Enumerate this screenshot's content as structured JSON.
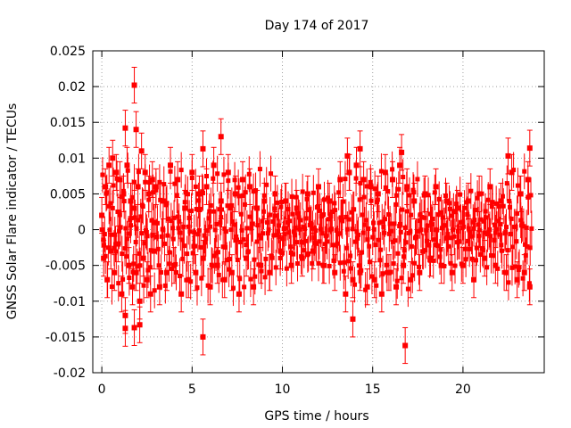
{
  "chart_data": {
    "type": "scatter",
    "title": "Day 174 of 2017",
    "xlabel": "GPS time / hours",
    "ylabel": "GNSS Solar Flare indicator / TECUs",
    "xlim": [
      -0.5,
      24.5
    ],
    "ylim": [
      -0.02,
      0.025
    ],
    "x_ticks": [
      0,
      5,
      10,
      15,
      20
    ],
    "x_tick_labels": [
      "0",
      "5",
      "10",
      "15",
      "20"
    ],
    "y_ticks": [
      -0.02,
      -0.015,
      -0.01,
      -0.005,
      0,
      0.005,
      0.01,
      0.015,
      0.02,
      0.025
    ],
    "y_tick_labels": [
      "-0.02",
      "-0.015",
      "-0.01",
      "-0.005",
      "0",
      "0.005",
      "0.01",
      "0.015",
      "0.02",
      "0.025"
    ],
    "grid": true,
    "legend": "none",
    "color": "#ff0000",
    "error_bar_half_width": 0.0025,
    "notable_points": [
      {
        "x": 1.8,
        "y": 0.0202
      },
      {
        "x": 1.3,
        "y": 0.0142
      },
      {
        "x": 1.9,
        "y": 0.014
      },
      {
        "x": 6.6,
        "y": 0.013
      },
      {
        "x": 5.6,
        "y": 0.0113
      },
      {
        "x": 23.7,
        "y": 0.0114
      },
      {
        "x": 5.6,
        "y": -0.015
      },
      {
        "x": 16.8,
        "y": -0.0162
      },
      {
        "x": 13.9,
        "y": -0.0125
      },
      {
        "x": 1.3,
        "y": -0.0138
      },
      {
        "x": 1.8,
        "y": -0.0137
      },
      {
        "x": 2.1,
        "y": -0.0133
      },
      {
        "x": 14.3,
        "y": 0.0113
      },
      {
        "x": 13.6,
        "y": 0.0103
      },
      {
        "x": 16.6,
        "y": 0.0108
      },
      {
        "x": 22.5,
        "y": 0.0103
      }
    ],
    "series": [
      {
        "x": [
          0.0,
          0.1,
          0.2,
          0.3,
          0.4,
          0.5,
          0.6,
          0.7,
          0.8,
          0.9,
          1.0,
          1.1,
          1.2,
          1.3,
          1.4,
          1.5,
          1.6,
          1.7,
          1.8,
          1.9,
          2.0,
          2.1,
          2.2,
          2.3,
          2.4,
          2.5,
          2.6,
          2.7,
          2.8,
          2.9,
          3.0,
          3.2,
          3.4,
          3.6,
          3.8,
          4.0,
          4.2,
          4.4,
          4.6,
          4.8,
          5.0,
          5.2,
          5.4,
          5.6,
          5.8,
          6.0,
          6.2,
          6.4,
          6.6,
          6.8,
          7.0,
          7.2,
          7.4,
          7.6,
          7.8,
          8.0,
          8.2,
          8.4,
          8.6,
          8.8,
          9.0,
          9.3,
          9.6,
          9.9,
          10.2,
          10.5,
          10.8,
          11.1,
          11.4,
          11.7,
          12.0,
          12.3,
          12.6,
          12.9,
          13.2,
          13.5,
          13.7,
          13.9,
          14.1,
          14.3,
          14.5,
          14.7,
          14.9,
          15.1,
          15.3,
          15.5,
          15.7,
          15.9,
          16.1,
          16.3,
          16.5,
          16.7,
          16.9,
          17.1,
          17.3,
          17.6,
          17.9,
          18.2,
          18.5,
          18.8,
          19.1,
          19.4,
          19.7,
          20.0,
          20.3,
          20.6,
          20.9,
          21.2,
          21.5,
          21.8,
          22.1,
          22.4,
          22.7,
          23.0,
          23.2,
          23.4,
          23.6,
          23.7
        ],
        "y": [
          0.002,
          -0.004,
          0.006,
          -0.007,
          0.009,
          -0.003,
          0.01,
          -0.006,
          0.008,
          -0.002,
          0.007,
          -0.009,
          0.005,
          -0.012,
          0.009,
          -0.005,
          0.004,
          -0.008,
          0.003,
          -0.006,
          0.006,
          -0.01,
          0.011,
          -0.004,
          0.008,
          -0.007,
          0.005,
          -0.009,
          0.007,
          -0.003,
          0.006,
          -0.008,
          0.004,
          -0.006,
          0.009,
          -0.005,
          0.007,
          -0.009,
          0.003,
          -0.007,
          0.008,
          -0.006,
          0.005,
          -0.004,
          0.006,
          -0.008,
          0.009,
          -0.005,
          0.004,
          -0.007,
          0.008,
          -0.006,
          0.005,
          -0.009,
          0.007,
          -0.004,
          0.006,
          -0.008,
          0.003,
          -0.005,
          0.004,
          -0.006,
          0.005,
          -0.003,
          0.004,
          -0.005,
          0.003,
          -0.004,
          0.005,
          -0.003,
          0.006,
          -0.005,
          0.004,
          -0.006,
          0.007,
          -0.009,
          0.008,
          -0.007,
          0.009,
          -0.006,
          0.007,
          -0.008,
          0.006,
          -0.007,
          0.005,
          -0.009,
          0.008,
          -0.006,
          0.007,
          -0.008,
          0.009,
          -0.005,
          0.006,
          -0.007,
          0.004,
          -0.006,
          0.005,
          -0.004,
          0.006,
          -0.005,
          0.004,
          -0.006,
          0.003,
          -0.005,
          0.004,
          -0.007,
          0.005,
          -0.004,
          0.006,
          -0.005,
          0.004,
          -0.006,
          0.008,
          -0.007,
          0.005,
          -0.006,
          0.007,
          -0.008
        ]
      }
    ]
  }
}
